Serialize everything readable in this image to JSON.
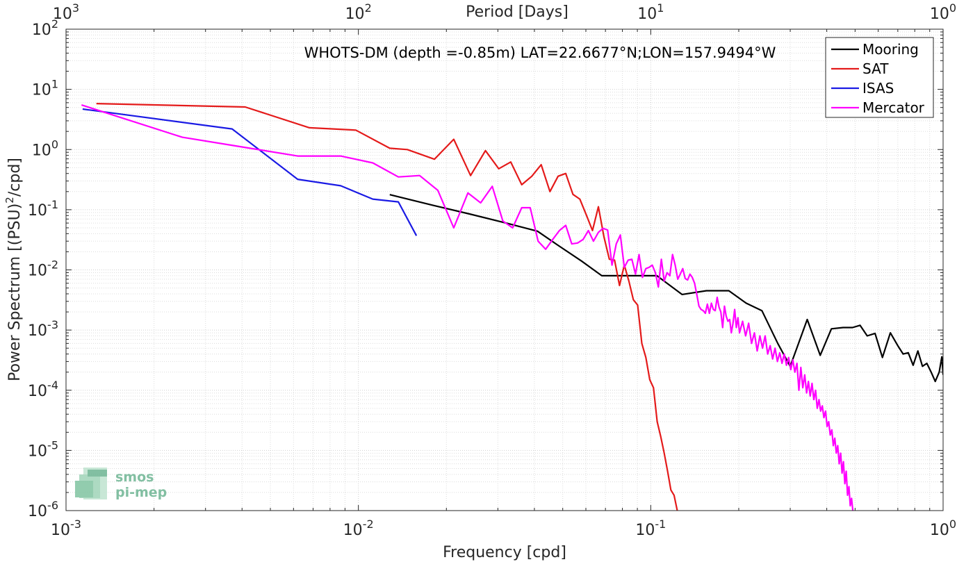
{
  "chart_data": {
    "type": "line",
    "title": "WHOTS-DM (depth =-0.85m) LAT=22.6677°N;LON=157.9494°W",
    "xlabel": "Frequency [cpd]",
    "ylabel_main": "Power Spectrum [(PSU)",
    "ylabel_sup": "2",
    "ylabel_tail": "/cpd]",
    "top_xlabel": "Period [Days]",
    "x_scale": "log",
    "y_scale": "log",
    "xlim": [
      0.001,
      1
    ],
    "ylim": [
      1e-06,
      100
    ],
    "grid": true,
    "legend_position": "top-right",
    "x_tick_labels": [
      {
        "base": "10",
        "exp": "-3",
        "value": 0.001
      },
      {
        "base": "10",
        "exp": "-2",
        "value": 0.01
      },
      {
        "base": "10",
        "exp": "-1",
        "value": 0.1
      },
      {
        "base": "10",
        "exp": "0",
        "value": 1
      }
    ],
    "top_tick_labels": [
      {
        "base": "10",
        "exp": "3",
        "value": 0.001
      },
      {
        "base": "10",
        "exp": "2",
        "value": 0.01
      },
      {
        "base": "10",
        "exp": "1",
        "value": 0.1
      },
      {
        "base": "10",
        "exp": "0",
        "value": 1
      }
    ],
    "y_tick_labels": [
      {
        "base": "10",
        "exp": "2",
        "value": 100
      },
      {
        "base": "10",
        "exp": "1",
        "value": 10
      },
      {
        "base": "10",
        "exp": "0",
        "value": 1
      },
      {
        "base": "10",
        "exp": "-1",
        "value": 0.1
      },
      {
        "base": "10",
        "exp": "-2",
        "value": 0.01
      },
      {
        "base": "10",
        "exp": "-3",
        "value": 0.001
      },
      {
        "base": "10",
        "exp": "-4",
        "value": 0.0001
      },
      {
        "base": "10",
        "exp": "-5",
        "value": 1e-05
      },
      {
        "base": "10",
        "exp": "-6",
        "value": 1e-06
      }
    ],
    "series": [
      {
        "name": "Mooring",
        "color": "#000000",
        "points": [
          [
            0.0128,
            0.178
          ],
          [
            0.018,
            0.118
          ],
          [
            0.024,
            0.085
          ],
          [
            0.032,
            0.06
          ],
          [
            0.041,
            0.044
          ],
          [
            0.048,
            0.026
          ],
          [
            0.058,
            0.014
          ],
          [
            0.068,
            0.008
          ],
          [
            0.082,
            0.008
          ],
          [
            0.105,
            0.008
          ],
          [
            0.128,
            0.0039
          ],
          [
            0.155,
            0.0045
          ],
          [
            0.185,
            0.0045
          ],
          [
            0.212,
            0.0028
          ],
          [
            0.24,
            0.0021
          ],
          [
            0.272,
            0.0006
          ],
          [
            0.3,
            0.00025
          ],
          [
            0.343,
            0.0015
          ],
          [
            0.38,
            0.00038
          ],
          [
            0.415,
            0.00105
          ],
          [
            0.455,
            0.0011
          ],
          [
            0.49,
            0.0011
          ],
          [
            0.52,
            0.0012
          ],
          [
            0.55,
            0.0008
          ],
          [
            0.585,
            0.00088
          ],
          [
            0.62,
            0.00035
          ],
          [
            0.66,
            0.0009
          ],
          [
            0.7,
            0.00055
          ],
          [
            0.73,
            0.0004
          ],
          [
            0.76,
            0.00042
          ],
          [
            0.79,
            0.00026
          ],
          [
            0.82,
            0.00045
          ],
          [
            0.85,
            0.00025
          ],
          [
            0.88,
            0.00028
          ],
          [
            0.91,
            0.0002
          ],
          [
            0.94,
            0.00014
          ],
          [
            0.97,
            0.0002
          ],
          [
            0.99,
            0.00036
          ],
          [
            1.0,
            0.00018
          ]
        ]
      },
      {
        "name": "SAT",
        "color": "#e41a1a",
        "points": [
          [
            0.00127,
            5.8
          ],
          [
            0.0041,
            5.1
          ],
          [
            0.0068,
            2.3
          ],
          [
            0.0098,
            2.1
          ],
          [
            0.0128,
            1.05
          ],
          [
            0.0147,
            1.0
          ],
          [
            0.0182,
            0.69
          ],
          [
            0.0212,
            1.48
          ],
          [
            0.0242,
            0.37
          ],
          [
            0.0272,
            0.96
          ],
          [
            0.0302,
            0.48
          ],
          [
            0.0332,
            0.62
          ],
          [
            0.0362,
            0.26
          ],
          [
            0.0392,
            0.36
          ],
          [
            0.0422,
            0.56
          ],
          [
            0.0452,
            0.2
          ],
          [
            0.0482,
            0.36
          ],
          [
            0.0512,
            0.4
          ],
          [
            0.0542,
            0.18
          ],
          [
            0.0572,
            0.15
          ],
          [
            0.0602,
            0.082
          ],
          [
            0.0632,
            0.045
          ],
          [
            0.0662,
            0.112
          ],
          [
            0.0692,
            0.035
          ],
          [
            0.0722,
            0.015
          ],
          [
            0.0752,
            0.0145
          ],
          [
            0.0782,
            0.0055
          ],
          [
            0.0812,
            0.012
          ],
          [
            0.0842,
            0.0065
          ],
          [
            0.0872,
            0.0032
          ],
          [
            0.0902,
            0.0026
          ],
          [
            0.0932,
            0.0006
          ],
          [
            0.0962,
            0.00035
          ],
          [
            0.0992,
            0.00015
          ],
          [
            0.1022,
            0.00011
          ],
          [
            0.1052,
            3e-05
          ],
          [
            0.1082,
            1.7e-05
          ],
          [
            0.1112,
            9e-06
          ],
          [
            0.1142,
            4.5e-06
          ],
          [
            0.1172,
            2.2e-06
          ],
          [
            0.1202,
            1.8e-06
          ],
          [
            0.1232,
            1e-06
          ]
        ]
      },
      {
        "name": "ISAS",
        "color": "#1a1ae4",
        "points": [
          [
            0.00114,
            4.7
          ],
          [
            0.0037,
            2.2
          ],
          [
            0.0062,
            0.32
          ],
          [
            0.0087,
            0.25
          ],
          [
            0.0112,
            0.15
          ],
          [
            0.0137,
            0.135
          ],
          [
            0.0158,
            0.037
          ]
        ]
      },
      {
        "name": "Mercator",
        "color": "#ff00ff",
        "points": [
          [
            0.00113,
            5.5
          ],
          [
            0.0025,
            1.6
          ],
          [
            0.0038,
            1.15
          ],
          [
            0.0062,
            0.78
          ],
          [
            0.0087,
            0.78
          ],
          [
            0.0112,
            0.6
          ],
          [
            0.0137,
            0.35
          ],
          [
            0.0162,
            0.37
          ],
          [
            0.0187,
            0.21
          ],
          [
            0.0212,
            0.05
          ],
          [
            0.0237,
            0.19
          ],
          [
            0.0262,
            0.13
          ],
          [
            0.0287,
            0.245
          ],
          [
            0.0312,
            0.065
          ],
          [
            0.0337,
            0.05
          ],
          [
            0.0362,
            0.108
          ],
          [
            0.0387,
            0.108
          ],
          [
            0.0412,
            0.03
          ],
          [
            0.0437,
            0.022
          ],
          [
            0.0462,
            0.032
          ],
          [
            0.0487,
            0.045
          ],
          [
            0.0512,
            0.055
          ],
          [
            0.0537,
            0.027
          ],
          [
            0.0562,
            0.028
          ],
          [
            0.0587,
            0.032
          ],
          [
            0.0612,
            0.045
          ],
          [
            0.0637,
            0.03
          ],
          [
            0.0662,
            0.042
          ],
          [
            0.0687,
            0.049
          ],
          [
            0.0712,
            0.046
          ],
          [
            0.0737,
            0.012
          ],
          [
            0.0762,
            0.027
          ],
          [
            0.0787,
            0.038
          ],
          [
            0.0812,
            0.011
          ],
          [
            0.0837,
            0.0145
          ],
          [
            0.0862,
            0.015
          ],
          [
            0.0887,
            0.0085
          ],
          [
            0.0912,
            0.018
          ],
          [
            0.0937,
            0.0075
          ],
          [
            0.0962,
            0.0105
          ],
          [
            0.0987,
            0.011
          ],
          [
            0.1012,
            0.012
          ],
          [
            0.1037,
            0.009
          ],
          [
            0.1062,
            0.0052
          ],
          [
            0.1087,
            0.015
          ],
          [
            0.1112,
            0.0065
          ],
          [
            0.1137,
            0.009
          ],
          [
            0.1162,
            0.008
          ],
          [
            0.1187,
            0.018
          ],
          [
            0.1212,
            0.012
          ],
          [
            0.1237,
            0.007
          ],
          [
            0.1262,
            0.0085
          ],
          [
            0.1287,
            0.0105
          ],
          [
            0.1312,
            0.0072
          ],
          [
            0.1337,
            0.0068
          ],
          [
            0.1362,
            0.0085
          ],
          [
            0.1387,
            0.0075
          ],
          [
            0.1412,
            0.006
          ],
          [
            0.1437,
            0.0039
          ],
          [
            0.1462,
            0.0025
          ],
          [
            0.1487,
            0.0022
          ],
          [
            0.1512,
            0.0021
          ],
          [
            0.1537,
            0.0019
          ],
          [
            0.1562,
            0.0027
          ],
          [
            0.1587,
            0.0019
          ],
          [
            0.1612,
            0.0028
          ],
          [
            0.1637,
            0.0022
          ],
          [
            0.1662,
            0.0021
          ],
          [
            0.1687,
            0.0035
          ],
          [
            0.1712,
            0.0024
          ],
          [
            0.1737,
            0.002
          ],
          [
            0.1762,
            0.0011
          ],
          [
            0.1787,
            0.0025
          ],
          [
            0.1812,
            0.0017
          ],
          [
            0.1837,
            0.0014
          ],
          [
            0.1862,
            0.0015
          ],
          [
            0.1887,
            0.0009
          ],
          [
            0.1912,
            0.0013
          ],
          [
            0.1937,
            0.0022
          ],
          [
            0.1962,
            0.0011
          ],
          [
            0.1987,
            0.0016
          ],
          [
            0.2012,
            0.0009
          ],
          [
            0.2062,
            0.0014
          ],
          [
            0.2112,
            0.0008
          ],
          [
            0.2162,
            0.0013
          ],
          [
            0.2212,
            0.0006
          ],
          [
            0.2262,
            0.0009
          ],
          [
            0.2312,
            0.00045
          ],
          [
            0.2362,
            0.0008
          ],
          [
            0.2412,
            0.0005
          ],
          [
            0.2462,
            0.0008
          ],
          [
            0.2512,
            0.0004
          ],
          [
            0.2562,
            0.00055
          ],
          [
            0.2612,
            0.00033
          ],
          [
            0.2662,
            0.0005
          ],
          [
            0.2712,
            0.0003
          ],
          [
            0.2762,
            0.00042
          ],
          [
            0.2812,
            0.00028
          ],
          [
            0.2862,
            0.0004
          ],
          [
            0.2912,
            0.00026
          ],
          [
            0.2962,
            0.00035
          ],
          [
            0.3012,
            0.00022
          ],
          [
            0.3062,
            0.00032
          ],
          [
            0.3112,
            0.0002
          ],
          [
            0.3162,
            0.00028
          ],
          [
            0.3212,
            0.0001
          ],
          [
            0.3262,
            0.00024
          ],
          [
            0.3312,
            0.00011
          ],
          [
            0.3362,
            0.00018
          ],
          [
            0.3412,
            9e-05
          ],
          [
            0.3462,
            0.00014
          ],
          [
            0.3512,
            8e-05
          ],
          [
            0.3562,
            0.00013
          ],
          [
            0.3612,
            7e-05
          ],
          [
            0.3662,
            0.0001
          ],
          [
            0.3712,
            5e-05
          ],
          [
            0.3762,
            7e-05
          ],
          [
            0.3812,
            4.5e-05
          ],
          [
            0.3862,
            5.5e-05
          ],
          [
            0.3912,
            3.5e-05
          ],
          [
            0.3962,
            4.5e-05
          ],
          [
            0.4012,
            2.5e-05
          ],
          [
            0.4062,
            3e-05
          ],
          [
            0.4112,
            1.8e-05
          ],
          [
            0.4162,
            2.2e-05
          ],
          [
            0.4212,
            1.2e-05
          ],
          [
            0.4262,
            1.6e-05
          ],
          [
            0.4312,
            9e-06
          ],
          [
            0.4362,
            1.2e-05
          ],
          [
            0.4412,
            6e-06
          ],
          [
            0.4462,
            9e-06
          ],
          [
            0.4512,
            4.2e-06
          ],
          [
            0.4562,
            6.5e-06
          ],
          [
            0.4612,
            2.8e-06
          ],
          [
            0.4662,
            4.5e-06
          ],
          [
            0.4712,
            1.8e-06
          ],
          [
            0.4762,
            2.5e-06
          ],
          [
            0.4812,
            1.2e-06
          ],
          [
            0.4862,
            1.6e-06
          ],
          [
            0.4912,
            1e-06
          ]
        ]
      }
    ]
  },
  "logo": {
    "line1": "smos",
    "line2": "pi-mep"
  }
}
